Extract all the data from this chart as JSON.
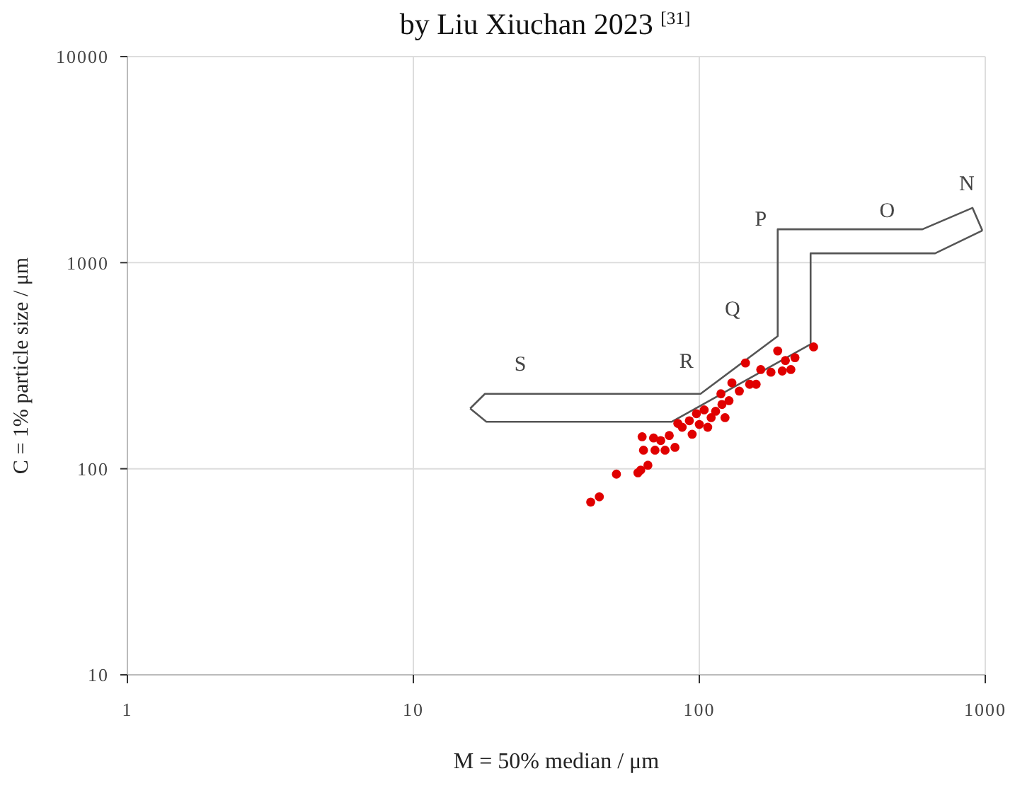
{
  "chart_data": {
    "type": "scatter",
    "title": "by Liu Xiuchan 2023 $^{[31]}$",
    "xlabel": "M = 50% median / μm",
    "ylabel": "C = 1% particle size / μm",
    "log": "xy",
    "grid": true,
    "legend": false,
    "marker": "circle",
    "xlim": [
      1,
      1000
    ],
    "xticks": [
      1,
      10,
      100,
      1000
    ],
    "ylim": [
      10,
      10000
    ],
    "yticks": [
      10,
      100,
      1000,
      10000
    ],
    "series": [
      {
        "color": "#e00000",
        "x": [
          41.7,
          44.7,
          51.3,
          61.0,
          62.4,
          66.1,
          63.1,
          69.2,
          63.8,
          70.0,
          75.9,
          82.2,
          78.5,
          84.1,
          87.1,
          94.4,
          97.7,
          104,
          110,
          119,
          120,
          127,
          123,
          138,
          150,
          158,
          145,
          164,
          178,
          188,
          195,
          200,
          209,
          216,
          251,
          92.3,
          100,
          114,
          107,
          73.3,
          130
        ],
        "values": [
          68.9,
          73.1,
          94.2,
          95.6,
          98.5,
          104,
          143,
          141,
          123,
          123,
          123,
          127,
          145,
          166,
          159,
          147,
          185,
          193,
          177,
          231,
          205,
          214,
          177,
          238,
          257,
          257,
          326,
          303,
          294,
          373,
          298,
          335,
          303,
          346,
          390,
          171,
          164,
          190,
          159,
          137,
          261
        ]
      },
      {
        "type": "line",
        "color": "#555555",
        "marker": "none",
        "x": [
          15.8,
          17.8,
          101,
          188,
          188,
          603,
          902,
          977
        ],
        "values": [
          196,
          231,
          231,
          440,
          1452,
          1452,
          1845,
          1432
        ]
      },
      {
        "type": "line",
        "color": "#555555",
        "marker": "none",
        "x": [
          15.8,
          18,
          80,
          245,
          245,
          668,
          977
        ],
        "values": [
          196,
          169,
          169,
          402,
          1110,
          1110,
          1432
        ]
      }
    ],
    "annotations": [
      "S",
      "R",
      "Q",
      "P",
      "O",
      "N"
    ]
  }
}
